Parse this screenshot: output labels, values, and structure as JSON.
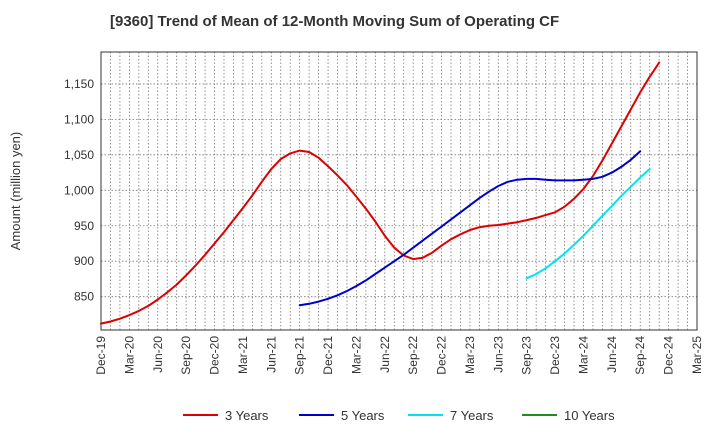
{
  "chart_data": {
    "type": "line",
    "title": "[9360]  Trend of Mean of 12-Month Moving Sum of Operating CF",
    "xlabel": "",
    "ylabel": "Amount (million yen)",
    "ylim": [
      803,
      1195
    ],
    "y_ticks": [
      850,
      900,
      950,
      1000,
      1050,
      1100,
      1150
    ],
    "y_tick_labels": [
      "850",
      "900",
      "950",
      "1,000",
      "1,050",
      "1,100",
      "1,150"
    ],
    "x_tick_labels": [
      "Dec-19",
      "Mar-20",
      "Jun-20",
      "Sep-20",
      "Dec-20",
      "Mar-21",
      "Jun-21",
      "Sep-21",
      "Dec-21",
      "Mar-22",
      "Jun-22",
      "Sep-22",
      "Dec-22",
      "Mar-23",
      "Jun-23",
      "Sep-23",
      "Dec-23",
      "Mar-24",
      "Jun-24",
      "Sep-24",
      "Dec-24",
      "Mar-25"
    ],
    "grid": true,
    "legend_position": "bottom",
    "series": [
      {
        "name": "3 Years",
        "color": "#dd0000",
        "start_index": 0,
        "values": [
          812,
          815,
          819,
          824,
          830,
          837,
          846,
          856,
          867,
          880,
          894,
          909,
          925,
          941,
          958,
          975,
          993,
          1012,
          1030,
          1044,
          1052,
          1056,
          1054,
          1046,
          1034,
          1021,
          1007,
          991,
          974,
          956,
          936,
          919,
          908,
          903,
          905,
          912,
          922,
          931,
          938,
          944,
          948,
          950,
          951,
          953,
          955,
          958,
          961,
          965,
          969,
          977,
          988,
          1002,
          1020,
          1042,
          1066,
          1090,
          1114,
          1138,
          1160,
          1180
        ]
      },
      {
        "name": "5 Years",
        "color": "#0000cc",
        "start_index": 21,
        "values": [
          838,
          840,
          843,
          847,
          852,
          858,
          865,
          873,
          882,
          891,
          900,
          909,
          919,
          929,
          939,
          949,
          959,
          969,
          979,
          989,
          998,
          1006,
          1012,
          1015,
          1016,
          1016,
          1015,
          1014,
          1014,
          1014,
          1015,
          1016,
          1019,
          1025,
          1033,
          1043,
          1055
        ]
      },
      {
        "name": "7 Years",
        "color": "#00e5ee",
        "start_index": 45,
        "values": [
          876,
          882,
          890,
          900,
          911,
          923,
          936,
          950,
          964,
          978,
          992,
          1005,
          1018,
          1030
        ]
      },
      {
        "name": "10 Years",
        "color": "#228b22",
        "start_index": 0,
        "values": []
      }
    ]
  }
}
